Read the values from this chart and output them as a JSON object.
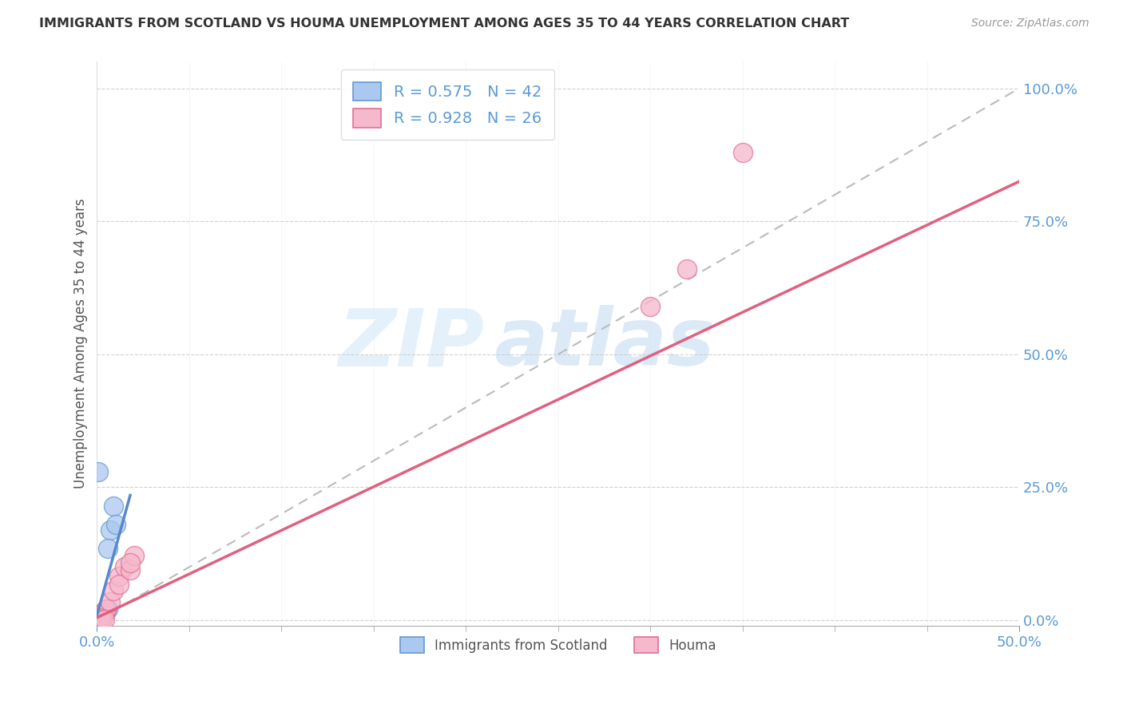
{
  "title": "IMMIGRANTS FROM SCOTLAND VS HOUMA UNEMPLOYMENT AMONG AGES 35 TO 44 YEARS CORRELATION CHART",
  "source": "Source: ZipAtlas.com",
  "xlim": [
    0,
    0.5
  ],
  "ylim": [
    -0.01,
    1.05
  ],
  "watermark_zip": "ZIP",
  "watermark_atlas": "atlas",
  "legend1_label": "R = 0.575   N = 42",
  "legend2_label": "R = 0.928   N = 26",
  "legend_series1": "Immigrants from Scotland",
  "legend_series2": "Houma",
  "scatter_blue": [
    [
      0.0005,
      0.002
    ],
    [
      0.001,
      0.004
    ],
    [
      0.001,
      0.006
    ],
    [
      0.0008,
      0.003
    ],
    [
      0.0012,
      0.005
    ],
    [
      0.0015,
      0.007
    ],
    [
      0.002,
      0.008
    ],
    [
      0.0018,
      0.006
    ],
    [
      0.0008,
      0.002
    ],
    [
      0.002,
      0.01
    ],
    [
      0.003,
      0.012
    ],
    [
      0.0025,
      0.009
    ],
    [
      0.003,
      0.013
    ],
    [
      0.004,
      0.015
    ],
    [
      0.002,
      0.005
    ],
    [
      0.004,
      0.017
    ],
    [
      0.001,
      0.003
    ],
    [
      0.0006,
      0.001
    ],
    [
      0.002,
      0.006
    ],
    [
      0.003,
      0.008
    ],
    [
      0.003,
      0.011
    ],
    [
      0.004,
      0.013
    ],
    [
      0.001,
      0.005
    ],
    [
      0.0015,
      0.004
    ],
    [
      0.0007,
      0.003
    ],
    [
      0.005,
      0.019
    ],
    [
      0.006,
      0.021
    ],
    [
      0.007,
      0.17
    ],
    [
      0.009,
      0.215
    ],
    [
      0.01,
      0.18
    ],
    [
      0.0004,
      0.001
    ],
    [
      0.0009,
      0.002
    ],
    [
      0.002,
      0.002
    ],
    [
      0.0015,
      0.002
    ],
    [
      0.0006,
      0.005
    ],
    [
      0.001,
      0.006
    ],
    [
      0.003,
      0.007
    ],
    [
      0.0025,
      0.009
    ],
    [
      0.004,
      0.012
    ],
    [
      0.004,
      0.014
    ],
    [
      0.0005,
      0.28
    ],
    [
      0.006,
      0.135
    ]
  ],
  "scatter_pink": [
    [
      0.0005,
      0.003
    ],
    [
      0.001,
      0.005
    ],
    [
      0.0015,
      0.007
    ],
    [
      0.002,
      0.008
    ],
    [
      0.0025,
      0.01
    ],
    [
      0.003,
      0.012
    ],
    [
      0.0035,
      0.014
    ],
    [
      0.004,
      0.017
    ],
    [
      0.0045,
      0.019
    ],
    [
      0.005,
      0.021
    ],
    [
      0.007,
      0.035
    ],
    [
      0.009,
      0.055
    ],
    [
      0.012,
      0.082
    ],
    [
      0.015,
      0.101
    ],
    [
      0.012,
      0.068
    ],
    [
      0.018,
      0.095
    ],
    [
      0.02,
      0.122
    ],
    [
      0.018,
      0.108
    ],
    [
      0.0005,
      0.001
    ],
    [
      0.001,
      0.003
    ],
    [
      0.0015,
      0.005
    ],
    [
      0.3,
      0.59
    ],
    [
      0.32,
      0.66
    ],
    [
      0.35,
      0.88
    ],
    [
      0.003,
      0.002
    ],
    [
      0.004,
      0.001
    ]
  ],
  "blue_line_x": [
    0.0,
    0.018
  ],
  "blue_line_y": [
    0.01,
    0.235
  ],
  "pink_line_x": [
    0.0,
    0.5
  ],
  "pink_line_y": [
    0.005,
    0.825
  ],
  "dashed_line_x": [
    0.0,
    0.5
  ],
  "dashed_line_y": [
    0.0,
    1.0
  ],
  "blue_color": "#aac8f0",
  "pink_color": "#f5b8cc",
  "blue_edge_color": "#6699cc",
  "pink_edge_color": "#e07090",
  "blue_line_color": "#5588cc",
  "pink_line_color": "#e06080",
  "dashed_line_color": "#bbbbbb",
  "title_color": "#333333",
  "axis_tick_color": "#5b9bd5",
  "ylabel": "Unemployment Among Ages 35 to 44 years",
  "y_tick_vals": [
    0.0,
    0.25,
    0.5,
    0.75,
    1.0
  ],
  "y_tick_labels": [
    "0.0%",
    "25.0%",
    "50.0%",
    "75.0%",
    "100.0%"
  ],
  "x_left_label": "0.0%",
  "x_right_label": "50.0%"
}
